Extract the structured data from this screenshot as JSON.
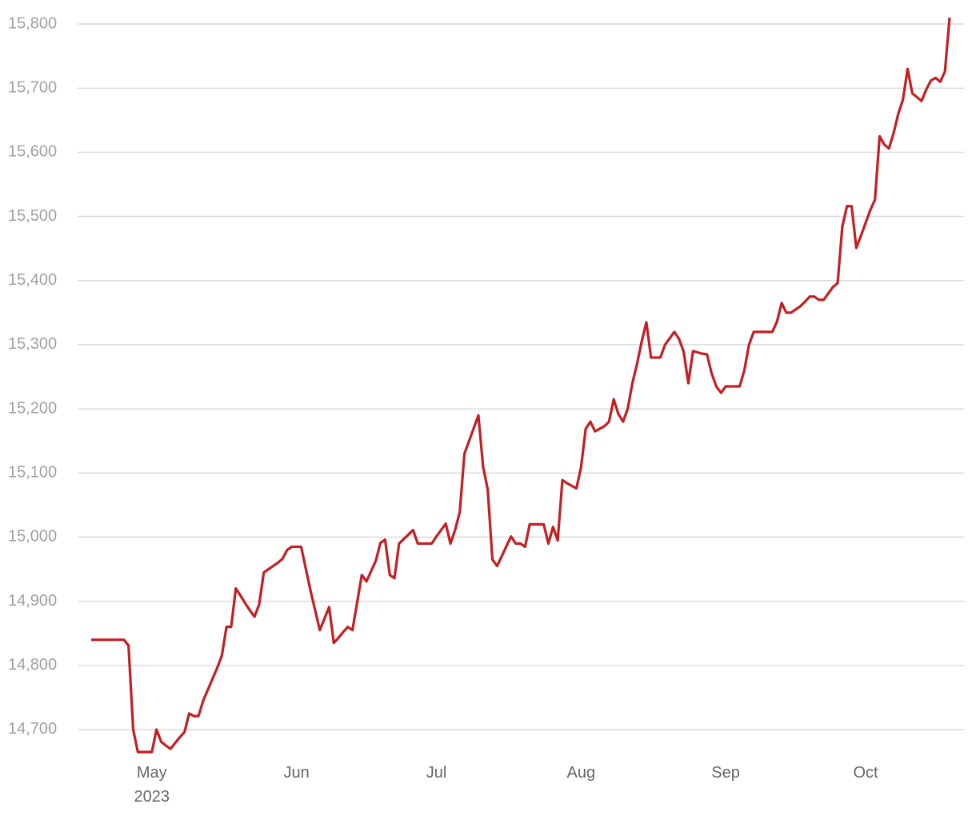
{
  "chart_data": {
    "type": "line",
    "color": "#c41e22",
    "grid": true,
    "categories": [
      null,
      null,
      null,
      null,
      null,
      null,
      null,
      null,
      null,
      null,
      null,
      null,
      null,
      "May 2023",
      null,
      null,
      null,
      null,
      null,
      null,
      null,
      null,
      null,
      null,
      null,
      null,
      null,
      null,
      null,
      null,
      null,
      null,
      null,
      null,
      null,
      null,
      null,
      null,
      null,
      null,
      null,
      null,
      null,
      null,
      "Jun",
      null,
      null,
      null,
      null,
      null,
      null,
      null,
      null,
      null,
      null,
      null,
      null,
      null,
      null,
      null,
      null,
      null,
      null,
      null,
      null,
      null,
      null,
      null,
      null,
      null,
      null,
      null,
      null,
      null,
      "Jul",
      null,
      null,
      null,
      null,
      null,
      null,
      null,
      null,
      null,
      null,
      null,
      null,
      null,
      null,
      null,
      null,
      null,
      null,
      null,
      null,
      null,
      null,
      null,
      null,
      null,
      null,
      null,
      null,
      null,
      null,
      "Aug",
      null,
      null,
      null,
      null,
      null,
      null,
      null,
      null,
      null,
      null,
      null,
      null,
      null,
      null,
      null,
      null,
      null,
      null,
      null,
      null,
      null,
      null,
      null,
      null,
      null,
      null,
      null,
      null,
      null,
      null,
      "Sep",
      null,
      null,
      null,
      null,
      null,
      null,
      null,
      null,
      null,
      null,
      null,
      null,
      null,
      null,
      null,
      null,
      null,
      null,
      null,
      null,
      null,
      null,
      null,
      null,
      null,
      null,
      null,
      null,
      null,
      "Oct",
      null,
      null,
      null,
      null,
      null,
      null,
      null,
      null,
      null,
      null,
      null,
      null,
      null,
      null,
      null,
      null,
      null,
      null
    ],
    "values": [
      14840,
      14840,
      14840,
      14840,
      14840,
      14840,
      14840,
      14840,
      14831,
      14700,
      14665,
      14665,
      14665,
      14665,
      14700,
      14681,
      14675,
      14670,
      14679,
      14688,
      14696,
      14725,
      14721,
      14721,
      14745,
      14762,
      14779,
      14796,
      14815,
      14860,
      14860,
      14920,
      14909,
      14897,
      14886,
      14876,
      14895,
      14945,
      14950,
      14955,
      14960,
      14966,
      14980,
      14985,
      14985,
      14985,
      14951,
      14917,
      14886,
      14855,
      14873,
      14891,
      14835,
      14843,
      14852,
      14860,
      14855,
      14898,
      14941,
      14931,
      14947,
      14963,
      14991,
      14996,
      14941,
      14936,
      14990,
      14997,
      15004,
      15011,
      14990,
      14990,
      14990,
      14990,
      15001,
      15011,
      15021,
      14990,
      15011,
      15039,
      15130,
      15150,
      15170,
      15190,
      15110,
      15074,
      14965,
      14955,
      14970,
      14986,
      15001,
      14990,
      14990,
      14985,
      15020,
      15020,
      15020,
      15020,
      14990,
      15016,
      14995,
      15089,
      15084,
      15080,
      15076,
      15109,
      15169,
      15180,
      15165,
      15169,
      15173,
      15180,
      15215,
      15192,
      15180,
      15200,
      15240,
      15270,
      15305,
      15335,
      15280,
      15280,
      15280,
      15300,
      15310,
      15320,
      15309,
      15289,
      15240,
      15290,
      15288,
      15286,
      15285,
      15255,
      15235,
      15225,
      15235,
      15235,
      15235,
      15235,
      15260,
      15300,
      15320,
      15320,
      15320,
      15320,
      15320,
      15336,
      15365,
      15350,
      15350,
      15355,
      15360,
      15367,
      15375,
      15375,
      15370,
      15370,
      15380,
      15390,
      15396,
      15484,
      15516,
      15516,
      15451,
      15470,
      15490,
      15510,
      15526,
      15625,
      15612,
      15606,
      15630,
      15660,
      15682,
      15730,
      15692,
      15686,
      15680,
      15698,
      15712,
      15716,
      15710,
      15726,
      15810
    ],
    "ylim": [
      14660,
      15820
    ],
    "yticks": [
      {
        "value": 14700,
        "label": "14,700"
      },
      {
        "value": 14800,
        "label": "14,800"
      },
      {
        "value": 14900,
        "label": "14,900"
      },
      {
        "value": 15000,
        "label": "15,000"
      },
      {
        "value": 15100,
        "label": "15,100"
      },
      {
        "value": 15200,
        "label": "15,200"
      },
      {
        "value": 15300,
        "label": "15,300"
      },
      {
        "value": 15400,
        "label": "15,400"
      },
      {
        "value": 15500,
        "label": "15,500"
      },
      {
        "value": 15600,
        "label": "15,600"
      },
      {
        "value": 15700,
        "label": "15,700"
      },
      {
        "value": 15800,
        "label": "15,800"
      }
    ]
  }
}
